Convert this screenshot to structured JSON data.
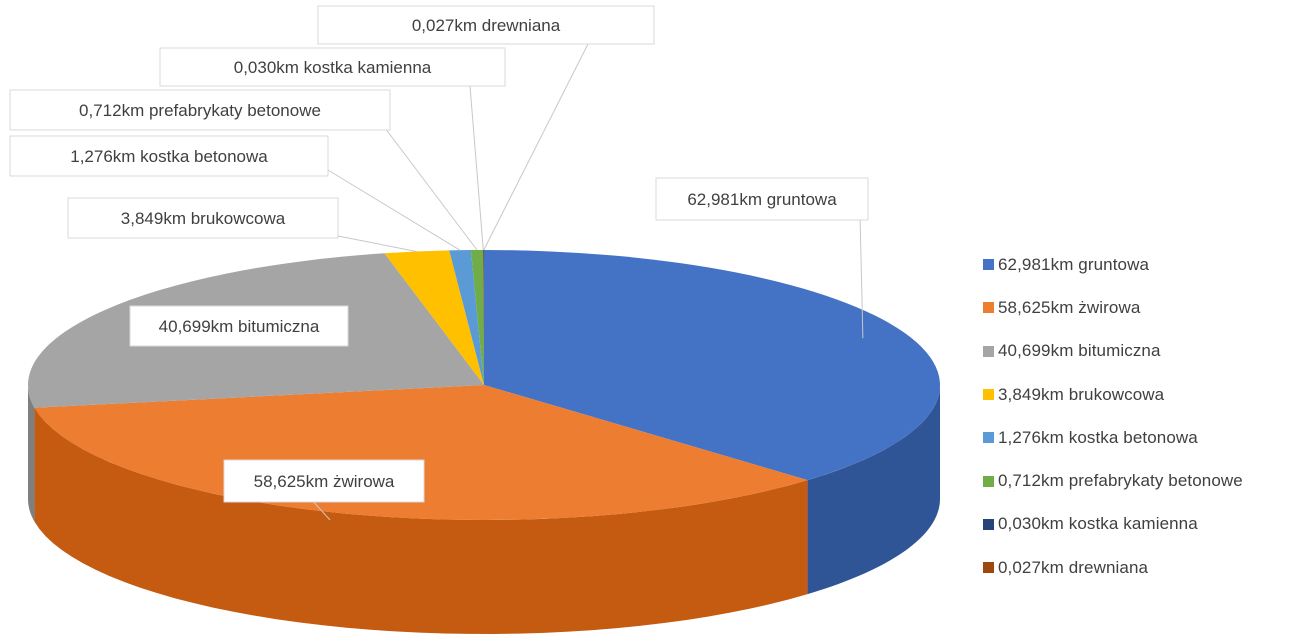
{
  "chart_data": {
    "type": "pie",
    "three_d": true,
    "series": [
      {
        "label": "62,981km gruntowa",
        "value": 62.981,
        "color": "#4472C4",
        "side": "#2F5597"
      },
      {
        "label": "58,625km żwirowa",
        "value": 58.625,
        "color": "#ED7D31",
        "side": "#C55A11"
      },
      {
        "label": "40,699km bitumiczna",
        "value": 40.699,
        "color": "#A5A5A5",
        "side": "#7F7F7F"
      },
      {
        "label": "3,849km brukowcowa",
        "value": 3.849,
        "color": "#FFC000",
        "side": "#BF9000"
      },
      {
        "label": "1,276km kostka betonowa",
        "value": 1.276,
        "color": "#5B9BD5",
        "side": "#2E75B6"
      },
      {
        "label": "0,712km prefabrykaty betonowe",
        "value": 0.712,
        "color": "#70AD47",
        "side": "#548235"
      },
      {
        "label": "0,030km kostka kamienna",
        "value": 0.03,
        "color": "#264478",
        "side": "#1C3358"
      },
      {
        "label": "0,027km drewniana",
        "value": 0.027,
        "color": "#9E480E",
        "side": "#7A3709"
      }
    ],
    "legend_position": "right",
    "data_labels": true
  }
}
